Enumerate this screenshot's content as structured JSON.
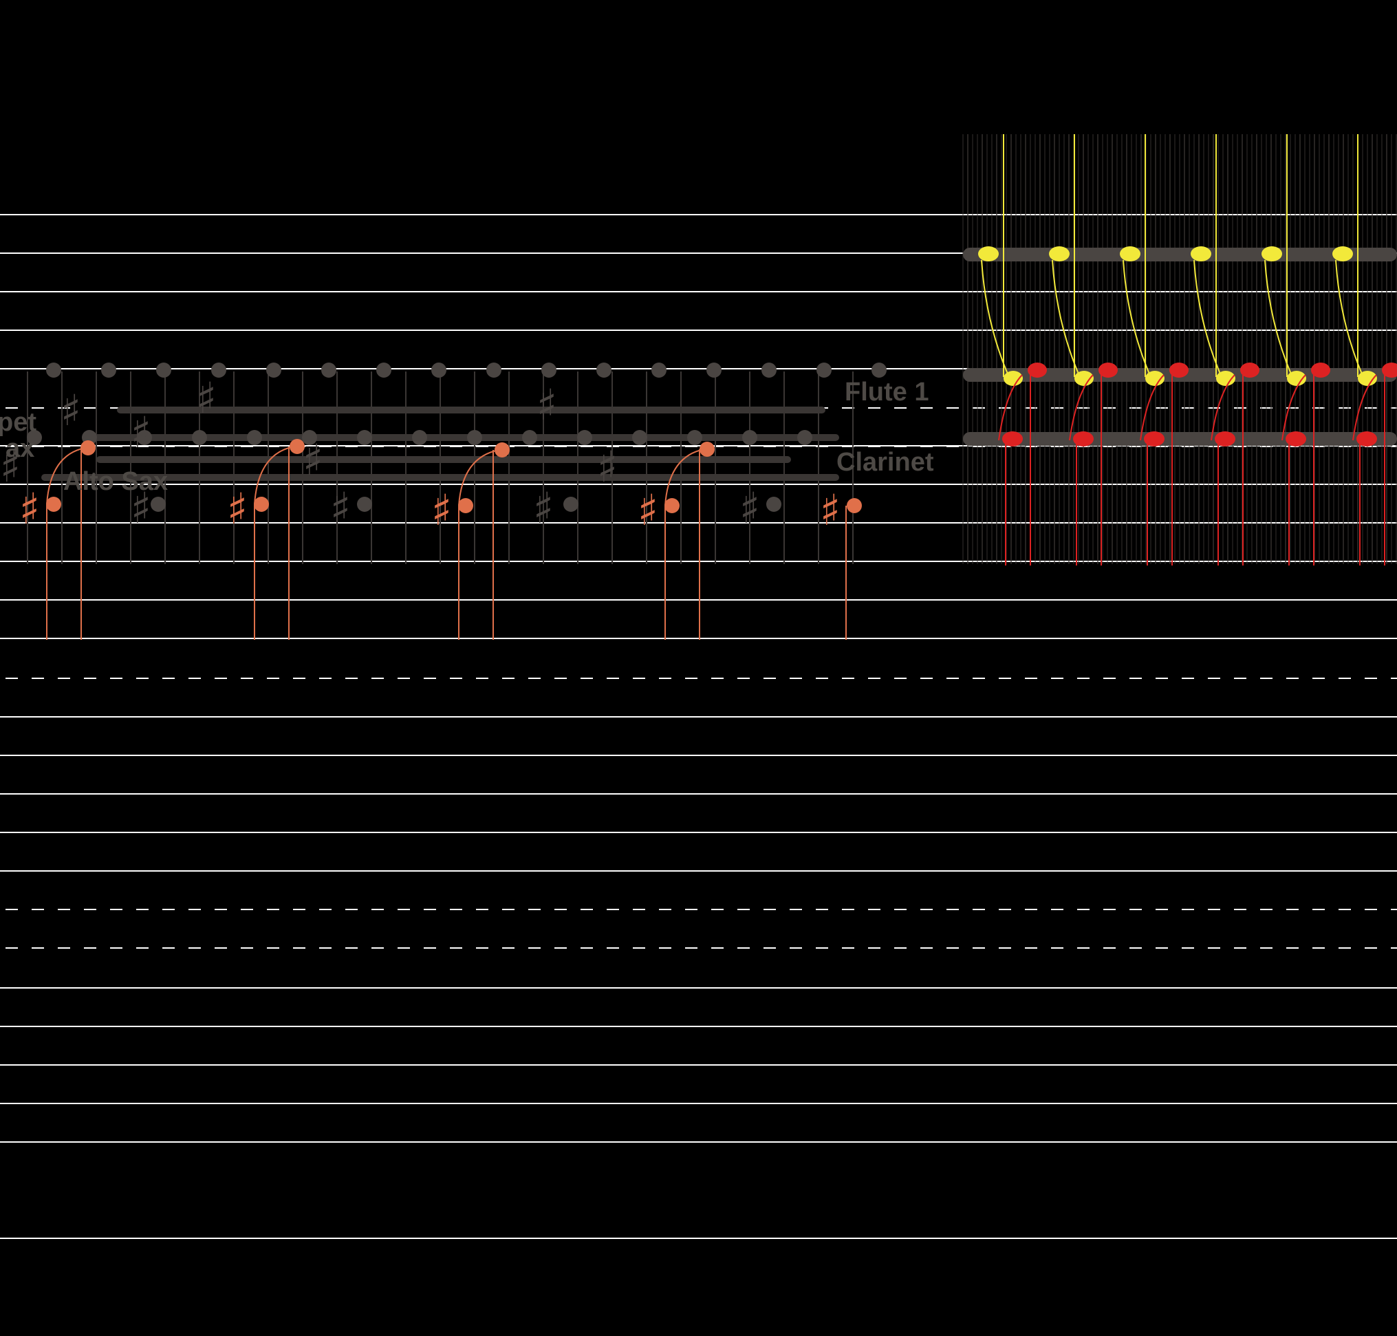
{
  "instrument_labels": {
    "flute_1": "Flute 1",
    "clarinet": "Clarinet",
    "alto_sax": "Alto Sax",
    "trumpet_partial": "pet",
    "sax_partial": "ax"
  },
  "accidental_symbol": "♯",
  "colors": {
    "background": "#000000",
    "staff_line": "#ffffff",
    "muted_note": "#4a4542",
    "highlight_note": "#e0704a",
    "flute_note": "#f2e93a",
    "clarinet_note": "#dd2222",
    "label": "#4e4a46"
  },
  "icons": {
    "note_head": "filled-circle",
    "accidental": "sharp-glyph"
  }
}
